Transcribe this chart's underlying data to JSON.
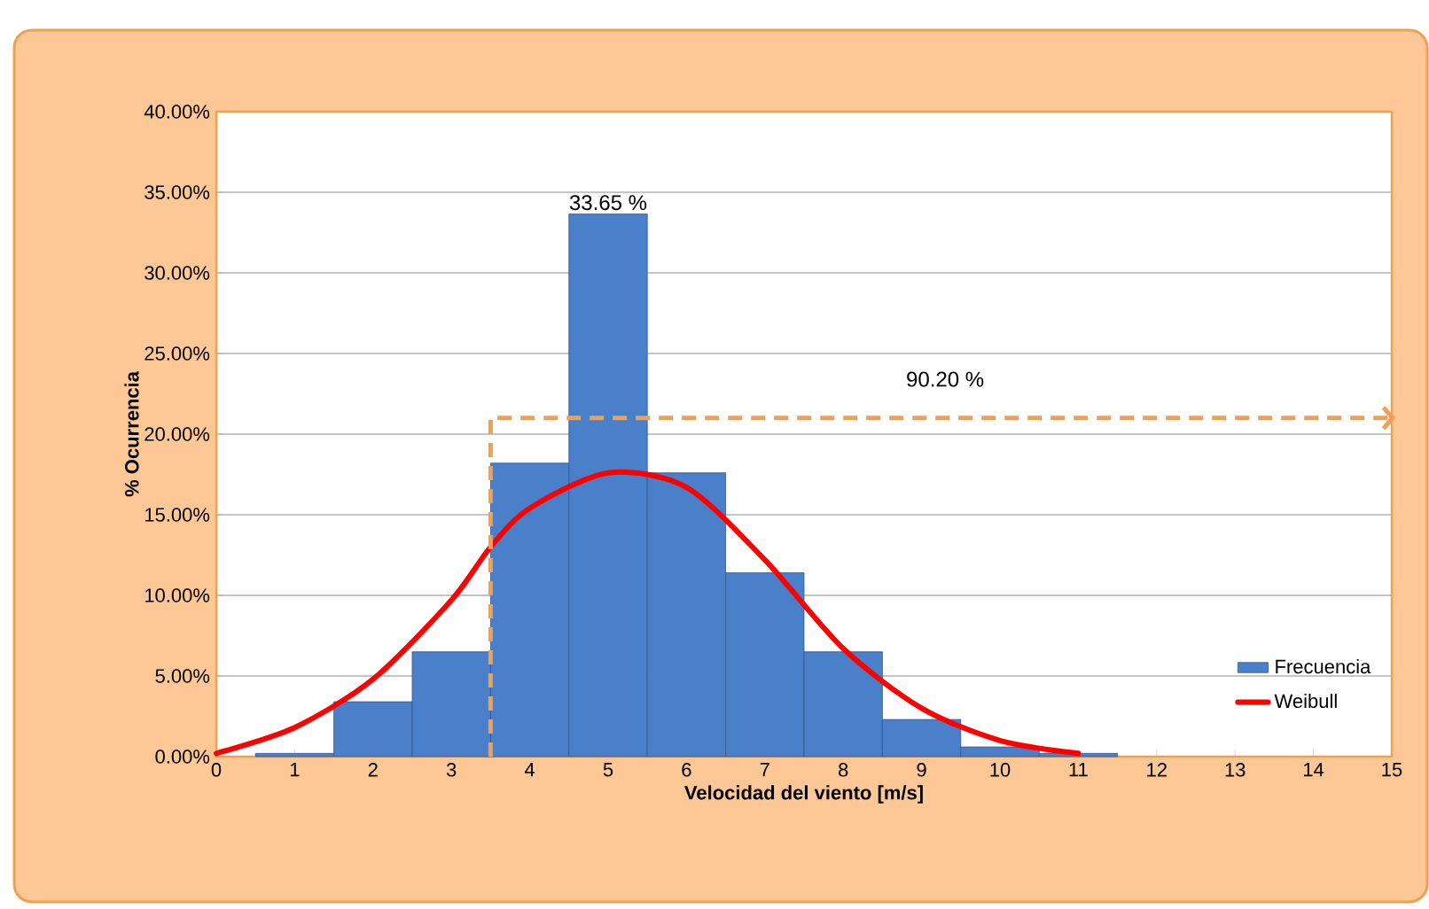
{
  "chart_data": {
    "type": "histogram",
    "xlabel": "Velocidad del viento [m/s]",
    "ylabel": "% Ocurrencia",
    "xlim": [
      0,
      15
    ],
    "ylim": [
      0,
      40
    ],
    "xticks": [
      0,
      1,
      2,
      3,
      4,
      5,
      6,
      7,
      8,
      9,
      10,
      11,
      12,
      13,
      14,
      15
    ],
    "yticks": [
      {
        "value": 0,
        "label": "0.00%"
      },
      {
        "value": 5,
        "label": "5.00%"
      },
      {
        "value": 10,
        "label": "10.00%"
      },
      {
        "value": 15,
        "label": "15.00%"
      },
      {
        "value": 20,
        "label": "20.00%"
      },
      {
        "value": 25,
        "label": "25.00%"
      },
      {
        "value": 30,
        "label": "30.00%"
      },
      {
        "value": 35,
        "label": "35.00%"
      },
      {
        "value": 40,
        "label": "40.00%"
      }
    ],
    "grid": "y",
    "legend": "bottom right",
    "series": [
      {
        "name": "Frecuencia",
        "color": "#4a7fc9",
        "bins": [
          0.5,
          1.5,
          2.5,
          3.5,
          4.5,
          5.5,
          6.5,
          7.5,
          8.5,
          9.5,
          10.5,
          11.5
        ],
        "values": [
          0.2,
          3.4,
          6.5,
          18.2,
          33.65,
          17.6,
          11.4,
          6.5,
          2.3,
          0.6,
          0.2
        ],
        "value_labels": [
          null,
          null,
          null,
          null,
          "33.65 %",
          null,
          null,
          null,
          null,
          null,
          null
        ]
      },
      {
        "name": "Weibull",
        "type": "line",
        "color": "#ff0000",
        "x": [
          0,
          1,
          2,
          3,
          3.5,
          4,
          5,
          6,
          7,
          8,
          9,
          10,
          11
        ],
        "values": [
          0.2,
          1.8,
          4.8,
          9.7,
          13.0,
          15.4,
          17.6,
          16.7,
          12.2,
          6.7,
          3.0,
          1.0,
          0.2
        ]
      },
      {
        "type": "line",
        "color": "#f0a050",
        "line_style": "dashed",
        "x": [
          3.5,
          3.5,
          15
        ],
        "values": [
          0,
          21,
          21
        ]
      }
    ],
    "annotations": [
      "90.20 %"
    ]
  }
}
